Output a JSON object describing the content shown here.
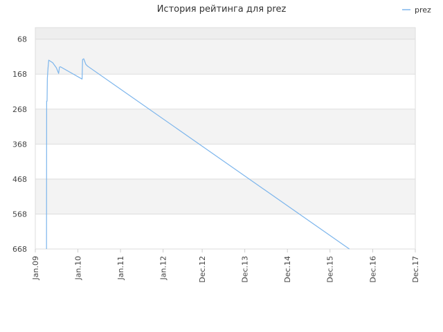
{
  "chart_data": {
    "type": "line",
    "title": "История рейтинга для prez",
    "xlabel": "",
    "ylabel": "",
    "y_reversed": true,
    "ylim": [
      35,
      668
    ],
    "y_ticks": [
      68,
      168,
      268,
      368,
      468,
      568,
      668
    ],
    "x_range": [
      "2009-01-01",
      "2017-12-01"
    ],
    "x_ticks": [
      {
        "label": "Jan.09",
        "date": "2009-01-01"
      },
      {
        "label": "Jan.10",
        "date": "2010-01-01"
      },
      {
        "label": "Jan.11",
        "date": "2011-01-01"
      },
      {
        "label": "Jan.12",
        "date": "2012-01-01"
      },
      {
        "label": "Dec.12",
        "date": "2012-12-01"
      },
      {
        "label": "Dec.13",
        "date": "2013-12-01"
      },
      {
        "label": "Dec.14",
        "date": "2014-12-01"
      },
      {
        "label": "Dec.15",
        "date": "2015-12-01"
      },
      {
        "label": "Dec.16",
        "date": "2016-12-01"
      },
      {
        "label": "Dec.17",
        "date": "2017-12-01"
      }
    ],
    "grid": true,
    "legend_position": "top-right",
    "series": [
      {
        "name": "prez",
        "color": "#7cb5ec",
        "points": [
          {
            "x": "2009-04-07",
            "y": 668
          },
          {
            "x": "2009-04-08",
            "y": 245
          },
          {
            "x": "2009-04-12",
            "y": 245
          },
          {
            "x": "2009-04-14",
            "y": 180
          },
          {
            "x": "2009-04-20",
            "y": 150
          },
          {
            "x": "2009-04-26",
            "y": 128
          },
          {
            "x": "2009-05-30",
            "y": 135
          },
          {
            "x": "2009-07-01",
            "y": 150
          },
          {
            "x": "2009-07-20",
            "y": 166
          },
          {
            "x": "2009-07-27",
            "y": 148
          },
          {
            "x": "2009-08-05",
            "y": 147
          },
          {
            "x": "2010-02-06",
            "y": 182
          },
          {
            "x": "2010-02-10",
            "y": 126
          },
          {
            "x": "2010-02-20",
            "y": 124
          },
          {
            "x": "2010-03-10",
            "y": 140
          },
          {
            "x": "2010-03-25",
            "y": 145
          },
          {
            "x": "2016-05-15",
            "y": 668
          }
        ]
      }
    ]
  }
}
